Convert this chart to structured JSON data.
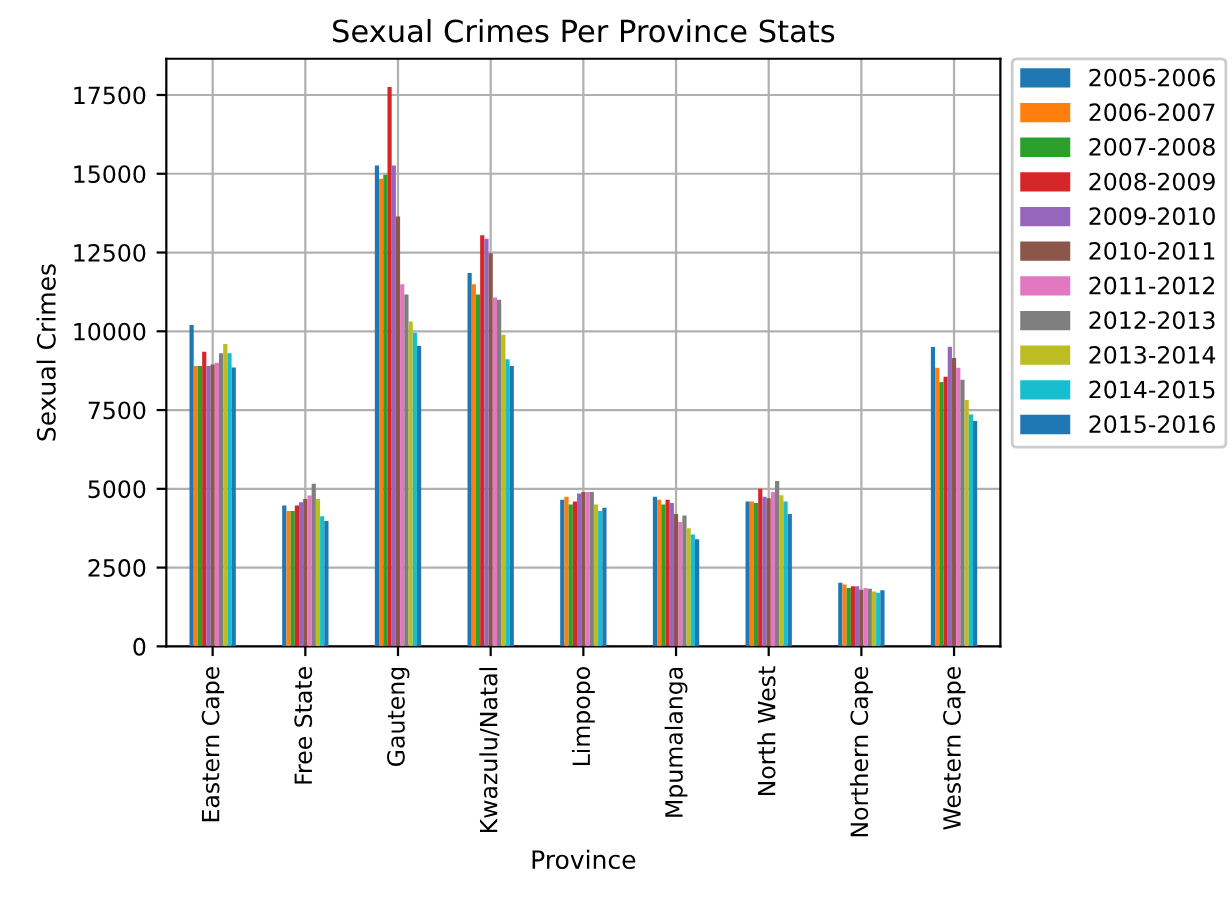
{
  "chart_data": {
    "type": "bar",
    "title": "Sexual Crimes Per Province Stats",
    "xlabel": "Province",
    "ylabel": "Sexual Crimes",
    "categories": [
      "Eastern Cape",
      "Free State",
      "Gauteng",
      "Kwazulu/Natal",
      "Limpopo",
      "Mpumalanga",
      "North West",
      "Northern Cape",
      "Western Cape"
    ],
    "series": [
      {
        "name": "2005-2006",
        "color": "#1f77b4",
        "values": [
          10200,
          4470,
          15260,
          11850,
          4650,
          4750,
          4600,
          2020,
          9500
        ]
      },
      {
        "name": "2006-2007",
        "color": "#ff7f0e",
        "values": [
          8900,
          4300,
          14840,
          11490,
          4750,
          4650,
          4600,
          1960,
          8840
        ]
      },
      {
        "name": "2007-2008",
        "color": "#2ca02c",
        "values": [
          8900,
          4300,
          14970,
          11170,
          4500,
          4500,
          4550,
          1850,
          8390
        ]
      },
      {
        "name": "2008-2009",
        "color": "#d62728",
        "values": [
          9350,
          4470,
          17750,
          13050,
          4600,
          4650,
          5000,
          1910,
          8560
        ]
      },
      {
        "name": "2009-2010",
        "color": "#9467bd",
        "values": [
          8900,
          4570,
          15260,
          12940,
          4850,
          4550,
          4750,
          1910,
          9510
        ]
      },
      {
        "name": "2010-2011",
        "color": "#8c564b",
        "values": [
          8950,
          4680,
          13640,
          12480,
          4900,
          4200,
          4700,
          1800,
          9150
        ]
      },
      {
        "name": "2011-2012",
        "color": "#e377c2",
        "values": [
          9000,
          4790,
          11490,
          11070,
          4900,
          3950,
          4900,
          1850,
          8840
        ]
      },
      {
        "name": "2012-2013",
        "color": "#7f7f7f",
        "values": [
          9300,
          5160,
          11170,
          11000,
          4900,
          4150,
          5250,
          1830,
          8460
        ]
      },
      {
        "name": "2013-2014",
        "color": "#bcbd22",
        "values": [
          9600,
          4680,
          10310,
          9890,
          4500,
          3750,
          4800,
          1740,
          7820
        ]
      },
      {
        "name": "2014-2015",
        "color": "#17becf",
        "values": [
          9300,
          4130,
          9950,
          9110,
          4300,
          3550,
          4600,
          1700,
          7360
        ]
      },
      {
        "name": "2015-2016",
        "color": "#1f77b4",
        "values": [
          8850,
          3980,
          9530,
          8900,
          4400,
          3400,
          4200,
          1780,
          7150
        ]
      }
    ],
    "ylim": [
      0,
      18650
    ],
    "yticks": [
      0,
      2500,
      5000,
      7500,
      10000,
      12500,
      15000,
      17500
    ],
    "grid": true,
    "legend": "top right"
  }
}
